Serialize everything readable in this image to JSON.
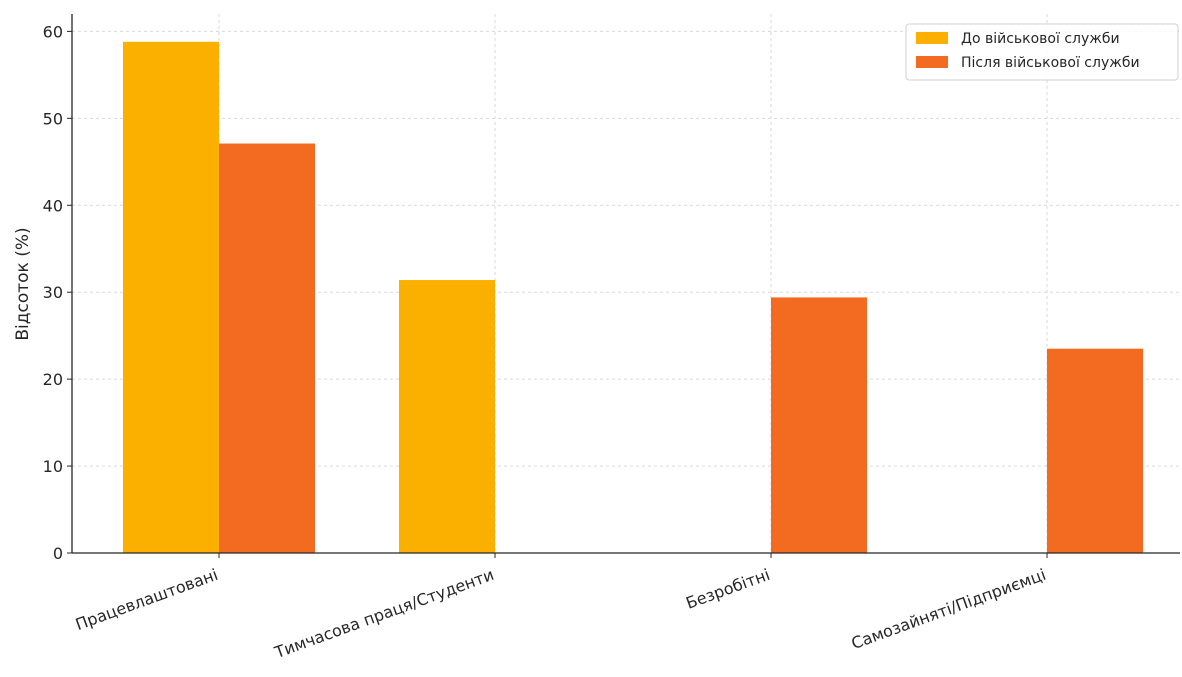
{
  "chart_data": {
    "type": "bar",
    "categories": [
      "Працевлаштовані",
      "Тимчасова праця/Студенти",
      "Безробітні",
      "Самозайняті/Підприємці"
    ],
    "series": [
      {
        "name": "До військової служби",
        "values": [
          58.8,
          31.4,
          0,
          0
        ],
        "color": "#fbb000"
      },
      {
        "name": "Після військової служби",
        "values": [
          47.1,
          0,
          29.4,
          23.5
        ],
        "color": "#f26b21"
      }
    ],
    "ylabel": "Відсоток (%)",
    "xlabel": "",
    "ylim": [
      0,
      62
    ],
    "yticks": [
      0,
      10,
      20,
      30,
      40,
      50,
      60
    ],
    "grid": true,
    "legend_position": "top-right",
    "xtick_rotation_deg": -20
  }
}
